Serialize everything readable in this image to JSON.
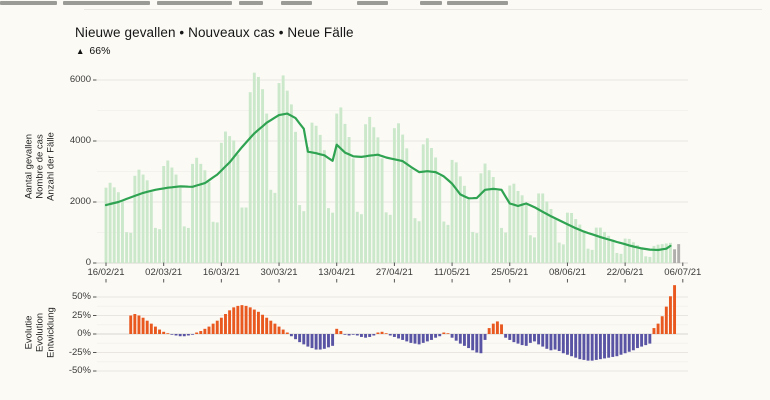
{
  "header": {
    "title": "Nieuwe gevallen • Nouveaux cas • Neue Fälle",
    "delta_icon": "▲",
    "delta_value": "66%"
  },
  "chart_data": [
    {
      "type": "bar",
      "title": "Nieuwe gevallen • Nouveaux cas • Neue Fälle",
      "ylabel_lines": [
        "Aantal gevallen",
        "Nombre de cas",
        "Anzahl der Fälle"
      ],
      "yticks": [
        0,
        2000,
        4000,
        6000
      ],
      "ylim": [
        0,
        6500
      ],
      "grid": "on",
      "x_tick_labels": [
        "16/02/21",
        "02/03/21",
        "16/03/21",
        "30/03/21",
        "13/04/21",
        "27/04/21",
        "11/05/21",
        "25/05/21",
        "08/06/21",
        "22/06/21",
        "06/07/21"
      ],
      "x_tick_day_indexes": [
        0,
        14,
        28,
        42,
        56,
        70,
        84,
        98,
        112,
        126,
        140
      ],
      "incomplete_from_index": 138,
      "colors": {
        "bar": "#cbe8cb",
        "bar_incomplete": "#b0afad",
        "line": "#2fa351"
      },
      "bars": [
        2470,
        2630,
        2480,
        2320,
        2010,
        1010,
        990,
        2860,
        3060,
        2900,
        2710,
        2320,
        1150,
        1110,
        3180,
        3360,
        3130,
        2900,
        2460,
        1200,
        1150,
        3250,
        3450,
        3250,
        3040,
        2660,
        1350,
        1330,
        3940,
        4310,
        4160,
        4020,
        3560,
        1820,
        1820,
        5600,
        6240,
        6100,
        5700,
        4900,
        2400,
        2300,
        5900,
        6150,
        5650,
        5200,
        4300,
        1900,
        1700,
        3800,
        4600,
        4500,
        4200,
        3700,
        1800,
        1650,
        4900,
        5100,
        4560,
        4130,
        3430,
        1680,
        1600,
        4550,
        4790,
        4450,
        4120,
        3430,
        1660,
        1580,
        4420,
        4580,
        4210,
        3760,
        3090,
        1470,
        1370,
        3890,
        4090,
        3770,
        3460,
        2850,
        1360,
        1250,
        3380,
        3300,
        2840,
        2530,
        2080,
        1020,
        980,
        2940,
        3260,
        3040,
        2820,
        2370,
        1150,
        1000,
        2540,
        2600,
        2360,
        2220,
        1910,
        910,
        840,
        2280,
        2280,
        2020,
        1770,
        1440,
        670,
        610,
        1650,
        1640,
        1440,
        1260,
        1010,
        470,
        430,
        1160,
        1160,
        1020,
        890,
        720,
        330,
        300,
        800,
        790,
        680,
        590,
        470,
        220,
        200,
        560,
        600,
        620,
        640,
        660,
        450,
        620
      ],
      "line_7day_avg": [
        1900,
        1933,
        1967,
        2000,
        2050,
        2100,
        2150,
        2200,
        2250,
        2300,
        2333,
        2367,
        2400,
        2423,
        2447,
        2470,
        2483,
        2497,
        2510,
        2507,
        2503,
        2500,
        2540,
        2580,
        2620,
        2713,
        2807,
        2900,
        3033,
        3167,
        3300,
        3467,
        3633,
        3800,
        3950,
        4100,
        4250,
        4367,
        4483,
        4600,
        4683,
        4767,
        4850,
        4875,
        4900,
        4825,
        4750,
        4575,
        4400,
        3650,
        3625,
        3600,
        3565,
        3530,
        3440,
        3350,
        3880,
        3750,
        3620,
        3560,
        3500,
        3490,
        3480,
        3500,
        3520,
        3535,
        3550,
        3505,
        3460,
        3430,
        3400,
        3370,
        3340,
        3245,
        3150,
        3065,
        2980,
        2995,
        3010,
        2995,
        2980,
        2910,
        2840,
        2720,
        2600,
        2425,
        2250,
        2185,
        2120,
        2125,
        2130,
        2265,
        2400,
        2415,
        2430,
        2415,
        2400,
        2175,
        1950,
        1910,
        1870,
        1910,
        1950,
        1890,
        1830,
        1755,
        1680,
        1605,
        1530,
        1465,
        1400,
        1335,
        1270,
        1205,
        1140,
        1085,
        1030,
        985,
        940,
        895,
        850,
        810,
        770,
        730,
        690,
        653,
        615,
        578,
        540,
        510,
        480,
        460,
        440,
        433,
        425,
        448,
        470,
        560,
        null,
        null
      ]
    },
    {
      "type": "bar",
      "title": "Evolutie • Evolution • Entwicklung",
      "ylabel_lines": [
        "Evolutie",
        "Evolution",
        "Entwicklung"
      ],
      "yticks_percent": [
        -50,
        -25,
        0,
        25,
        50
      ],
      "ylim": [
        -60,
        70
      ],
      "grid": "on",
      "colors": {
        "positive": "#e8581f",
        "negative": "#5a54a4"
      },
      "values_percent": [
        null,
        null,
        null,
        null,
        null,
        null,
        25,
        27,
        25,
        22,
        18,
        14,
        10,
        6,
        3,
        1,
        -1,
        -2,
        -3,
        -3,
        -2,
        -1,
        2,
        4,
        7,
        10,
        14,
        18,
        22,
        27,
        32,
        36,
        38,
        39,
        38,
        36,
        33,
        30,
        26,
        22,
        18,
        14,
        10,
        6,
        2,
        -3,
        -7,
        -11,
        -14,
        -17,
        -19,
        -21,
        -21,
        -20,
        -18,
        -16,
        7,
        4,
        -1,
        -2,
        -1,
        -2,
        -4,
        -5,
        -4,
        -2,
        2,
        3,
        1,
        -2,
        -4,
        -6,
        -8,
        -10,
        -12,
        -13,
        -14,
        -12,
        -10,
        -8,
        -5,
        -3,
        2,
        1,
        -5,
        -9,
        -13,
        -16,
        -19,
        -22,
        -25,
        -26,
        -8,
        8,
        14,
        17,
        13,
        -5,
        -8,
        -11,
        -13,
        -15,
        -16,
        -12,
        -10,
        -14,
        -17,
        -20,
        -22,
        -21,
        -23,
        -26,
        -28,
        -30,
        -32,
        -34,
        -35,
        -36,
        -36,
        -35,
        -34,
        -33,
        -32,
        -31,
        -30,
        -28,
        -26,
        -24,
        -22,
        -19,
        -17,
        -15,
        -13,
        8,
        14,
        24,
        37,
        51,
        66,
        null
      ]
    }
  ]
}
